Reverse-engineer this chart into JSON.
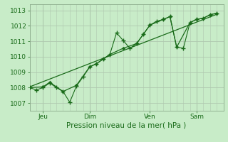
{
  "bg_color": "#c8ecc8",
  "grid_color": "#b0c8b0",
  "line_color": "#1a6b1a",
  "title": "Pression niveau de la mer( hPa )",
  "ylabel_values": [
    1007,
    1008,
    1009,
    1010,
    1011,
    1012,
    1013
  ],
  "ylim": [
    1006.5,
    1013.4
  ],
  "xlim": [
    0,
    29
  ],
  "xtick_positions": [
    2,
    9,
    18,
    25
  ],
  "xtick_labels": [
    "Jeu",
    "Dim",
    "Ven",
    "Sam"
  ],
  "x_vlines": [
    2,
    9,
    18,
    25
  ],
  "series1_x": [
    0,
    1,
    2,
    3,
    4,
    5,
    6,
    7,
    8,
    9,
    10,
    11,
    12,
    13,
    14,
    15,
    16,
    17,
    18,
    19,
    20,
    21,
    22,
    23,
    24,
    25,
    26,
    27,
    28
  ],
  "series1_y": [
    1008.0,
    1007.85,
    1008.0,
    1008.3,
    1008.0,
    1007.75,
    1007.05,
    1008.1,
    1008.7,
    1009.35,
    1009.55,
    1009.85,
    1010.15,
    1011.55,
    1011.05,
    1010.55,
    1010.85,
    1011.45,
    1012.05,
    1012.3,
    1012.42,
    1012.6,
    1010.62,
    1010.55,
    1012.22,
    1012.42,
    1012.5,
    1012.72,
    1012.82
  ],
  "series2_x": [
    0,
    2,
    3,
    5,
    7,
    9,
    10,
    11,
    12,
    14,
    16,
    17,
    18,
    20,
    21,
    22,
    24,
    25,
    26,
    27,
    28
  ],
  "series2_y": [
    1008.0,
    1008.05,
    1008.35,
    1007.75,
    1008.15,
    1009.35,
    1009.55,
    1009.85,
    1010.15,
    1010.55,
    1010.85,
    1011.45,
    1012.05,
    1012.42,
    1012.6,
    1010.62,
    1012.22,
    1012.42,
    1012.5,
    1012.72,
    1012.82
  ],
  "trend_x": [
    0,
    28
  ],
  "trend_y": [
    1008.05,
    1012.75
  ],
  "figsize": [
    3.2,
    2.0
  ],
  "dpi": 100,
  "title_fontsize": 7.5,
  "tick_fontsize": 6.5
}
